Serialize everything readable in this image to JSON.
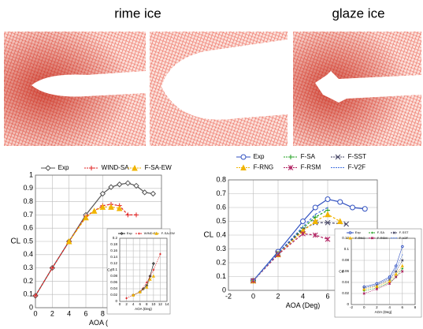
{
  "header": {
    "left_title": "rime ice",
    "right_title": "glaze ice"
  },
  "chart_data": [
    {
      "type": "line",
      "xlabel": "AOA (",
      "ylabel": "CL",
      "xlim": [
        0,
        15
      ],
      "ylim": [
        0,
        1
      ],
      "xticks": [
        0,
        2,
        4,
        6,
        8
      ],
      "yticks": [
        0,
        0.1,
        0.2,
        0.3,
        0.4,
        0.5,
        0.6,
        0.7,
        0.8,
        0.9,
        1
      ],
      "grid": true,
      "series": [
        {
          "name": "Exp",
          "color": "#555555",
          "marker": "diamond",
          "dash": false,
          "x": [
            0,
            2,
            4,
            6,
            8,
            9,
            10,
            11,
            12,
            13,
            14
          ],
          "values": [
            0.09,
            0.3,
            0.5,
            0.7,
            0.86,
            0.91,
            0.93,
            0.94,
            0.92,
            0.87,
            0.86
          ]
        },
        {
          "name": "WIND-SA",
          "color": "#e02020",
          "marker": "plus",
          "dash": true,
          "x": [
            0,
            2,
            4,
            6,
            8,
            9,
            10,
            11,
            12
          ],
          "values": [
            0.09,
            0.3,
            0.5,
            0.69,
            0.77,
            0.78,
            0.77,
            0.7,
            0.7
          ]
        },
        {
          "name": "F-SA-EW",
          "color": "#f0b400",
          "marker": "triangle",
          "dash": true,
          "x": [
            4,
            6,
            7,
            8,
            9,
            10
          ],
          "values": [
            0.5,
            0.68,
            0.73,
            0.76,
            0.76,
            0.75
          ]
        }
      ]
    },
    {
      "type": "line",
      "xlabel": "AOA (Deg)",
      "ylabel": "Cd",
      "xlim": [
        0,
        14
      ],
      "ylim": [
        0,
        0.2
      ],
      "xticks": [
        0,
        2,
        4,
        6,
        8,
        10,
        12,
        14
      ],
      "yticks": [
        0,
        0.02,
        0.04,
        0.06,
        0.08,
        0.1,
        0.12,
        0.14,
        0.16,
        0.18,
        0.2
      ],
      "grid": true,
      "series": [
        {
          "name": "Exp",
          "color": "#222222",
          "marker": "diamond",
          "dash": false,
          "x": [
            4,
            6,
            7,
            8,
            9,
            10
          ],
          "values": [
            0.02,
            0.03,
            0.04,
            0.05,
            0.08,
            0.12
          ]
        },
        {
          "name": "WIND-SA",
          "color": "#e02020",
          "marker": "plus",
          "dash": true,
          "x": [
            2,
            4,
            6,
            8,
            10,
            12
          ],
          "values": [
            0.01,
            0.02,
            0.03,
            0.06,
            0.1,
            0.15
          ]
        },
        {
          "name": "F-SA-EW",
          "color": "#f0b400",
          "marker": "triangle",
          "dash": true,
          "x": [
            4,
            6,
            8,
            9,
            10
          ],
          "values": [
            0.02,
            0.03,
            0.045,
            0.07,
            0.08
          ]
        }
      ]
    },
    {
      "type": "line",
      "xlabel": "AOA (Deg)",
      "ylabel": "CL",
      "xlim": [
        -2,
        10
      ],
      "ylim": [
        0,
        0.8
      ],
      "xticks": [
        -2,
        0,
        2,
        4,
        6
      ],
      "yticks": [
        0,
        0.1,
        0.2,
        0.3,
        0.4,
        0.5,
        0.6,
        0.7,
        0.8
      ],
      "grid": true,
      "series": [
        {
          "name": "Exp",
          "color": "#3050c0",
          "marker": "circle",
          "dash": false,
          "x": [
            0,
            2,
            4,
            5,
            6,
            7,
            8,
            9
          ],
          "values": [
            0.07,
            0.28,
            0.5,
            0.6,
            0.66,
            0.64,
            0.6,
            0.59
          ]
        },
        {
          "name": "F-SA",
          "color": "#20a020",
          "marker": "plus",
          "dash": true,
          "x": [
            0,
            2,
            4,
            5,
            6
          ],
          "values": [
            0.07,
            0.27,
            0.45,
            0.53,
            0.58
          ]
        },
        {
          "name": "F-SST",
          "color": "#404060",
          "marker": "x",
          "dash": true,
          "x": [
            0,
            2,
            4,
            5,
            6,
            7.5
          ],
          "values": [
            0.07,
            0.27,
            0.44,
            0.49,
            0.49,
            0.48
          ]
        },
        {
          "name": "F-RNG",
          "color": "#f0b400",
          "marker": "triangle",
          "dash": true,
          "x": [
            0,
            2,
            4,
            5,
            6,
            7
          ],
          "values": [
            0.07,
            0.26,
            0.43,
            0.5,
            0.55,
            0.5
          ]
        },
        {
          "name": "F-RSM",
          "color": "#b02060",
          "marker": "star",
          "dash": true,
          "x": [
            0,
            2,
            4,
            5,
            6
          ],
          "values": [
            0.07,
            0.26,
            0.41,
            0.4,
            0.37
          ]
        },
        {
          "name": "F-V2F",
          "color": "#4070e0",
          "marker": "none",
          "dash": true,
          "x": [
            0,
            2,
            4,
            5,
            6
          ],
          "values": [
            0.07,
            0.27,
            0.46,
            0.55,
            0.6
          ]
        }
      ]
    },
    {
      "type": "line",
      "xlabel": "AOA (Deg)",
      "ylabel": "Cd",
      "xlim": [
        -2,
        8
      ],
      "ylim": [
        0,
        0.12
      ],
      "xticks": [
        -2,
        0,
        2,
        4,
        6,
        8
      ],
      "yticks": [
        0,
        0.02,
        0.04,
        0.06,
        0.08,
        0.1,
        0.12
      ],
      "grid": true,
      "series": [
        {
          "name": "Exp",
          "color": "#3050c0",
          "marker": "circle",
          "dash": false,
          "x": [
            0,
            2,
            4,
            5,
            6
          ],
          "values": [
            0.032,
            0.038,
            0.05,
            0.07,
            0.105
          ]
        },
        {
          "name": "F-SA",
          "color": "#20a020",
          "marker": "plus",
          "dash": true,
          "x": [
            0,
            2,
            4,
            5,
            6
          ],
          "values": [
            0.025,
            0.03,
            0.04,
            0.05,
            0.065
          ]
        },
        {
          "name": "F-SST",
          "color": "#404060",
          "marker": "x",
          "dash": true,
          "x": [
            0,
            2,
            4,
            5,
            6
          ],
          "values": [
            0.03,
            0.035,
            0.045,
            0.06,
            0.08
          ]
        },
        {
          "name": "F-RNG",
          "color": "#f0b400",
          "marker": "triangle",
          "dash": true,
          "x": [
            0,
            2,
            4,
            5,
            6
          ],
          "values": [
            0.028,
            0.033,
            0.042,
            0.055,
            0.07
          ]
        },
        {
          "name": "F-RSM",
          "color": "#b02060",
          "marker": "star",
          "dash": true,
          "x": [
            0,
            2,
            4,
            5,
            6
          ],
          "values": [
            0.02,
            0.028,
            0.038,
            0.05,
            0.06
          ]
        },
        {
          "name": "F-V2F",
          "color": "#4070e0",
          "marker": "none",
          "dash": true,
          "x": [
            0,
            2,
            4,
            5,
            6
          ],
          "values": [
            0.03,
            0.036,
            0.048,
            0.065,
            0.09
          ]
        }
      ]
    }
  ]
}
